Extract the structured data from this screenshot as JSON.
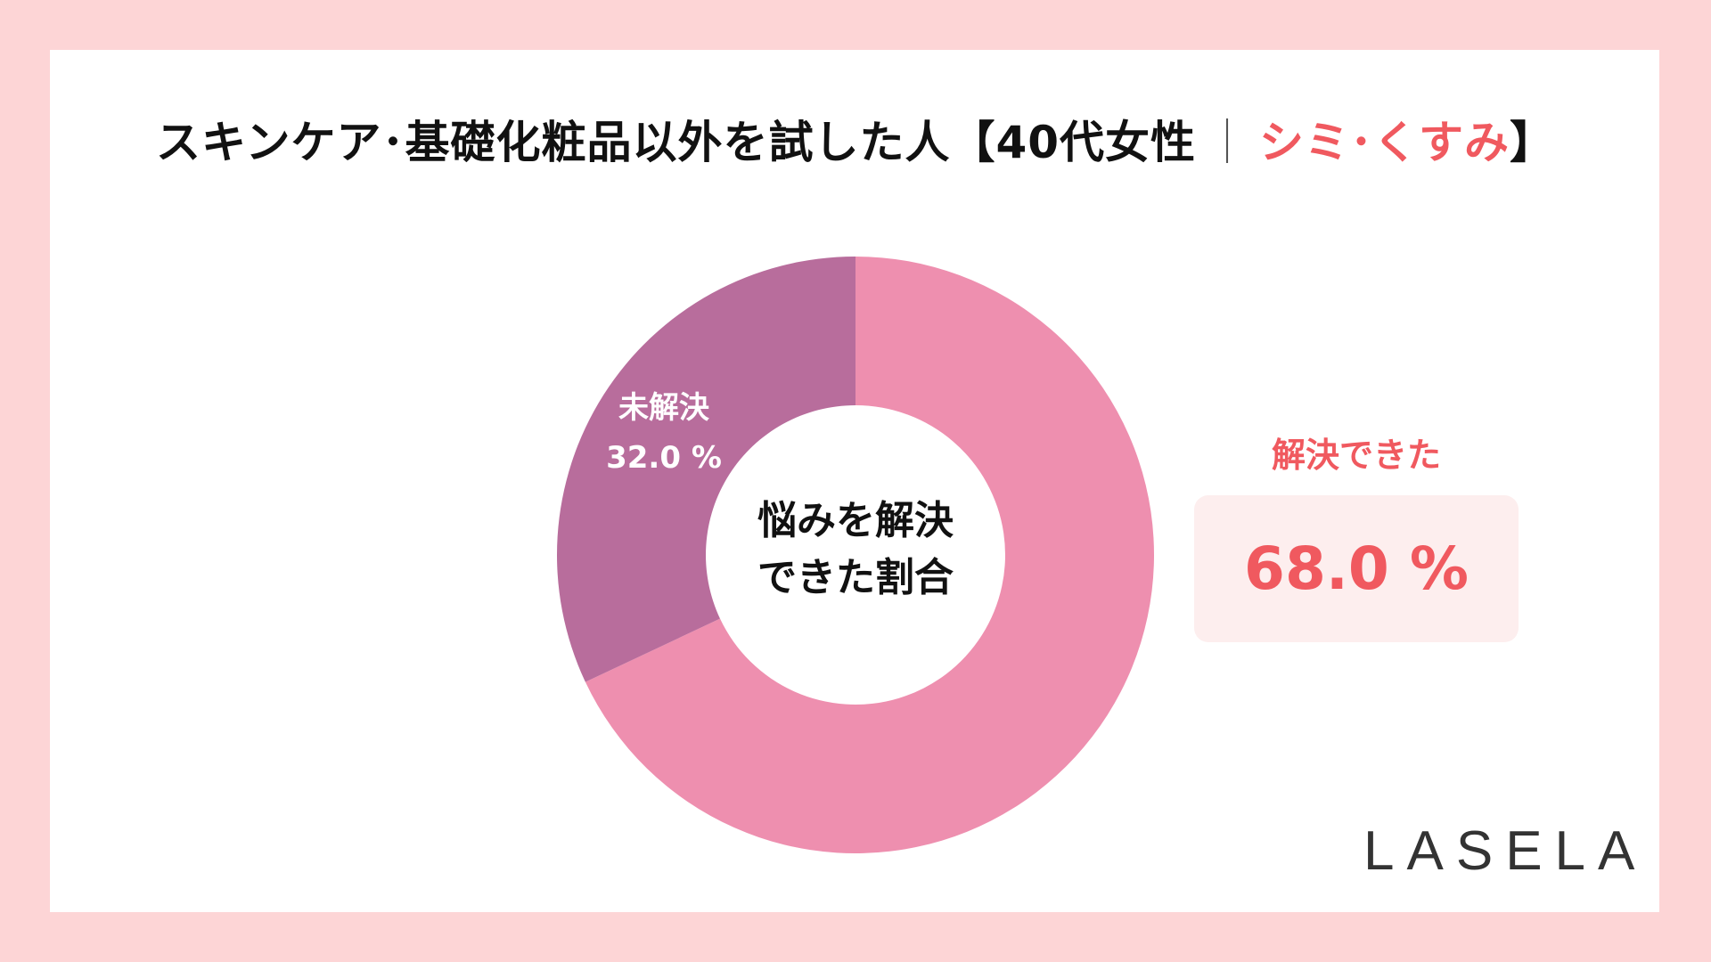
{
  "title": {
    "main": "スキンケア･基礎化粧品以外を試した人【40代女性",
    "separator": "｜",
    "accent": "シミ･くすみ",
    "close": "】"
  },
  "center_label": {
    "line1": "悩みを解決",
    "line2": "できた割合"
  },
  "callout": {
    "title": "解決できた",
    "value": "68.0 %"
  },
  "brand": "LASELA",
  "colors": {
    "background": "#fdd5d6",
    "accent": "#f0595f",
    "resolved": "#ee8faf",
    "unresolved": "#b86d9c"
  },
  "chart_data": {
    "type": "pie",
    "title": "スキンケア･基礎化粧品以外を試した人【40代女性｜シミ･くすみ】",
    "center_text": "悩みを解決できた割合",
    "unit": "%",
    "slices": [
      {
        "label": "解決できた",
        "value": 68.0,
        "color": "#ee8faf"
      },
      {
        "label": "未解決",
        "value": 32.0,
        "color": "#b86d9c"
      }
    ]
  }
}
